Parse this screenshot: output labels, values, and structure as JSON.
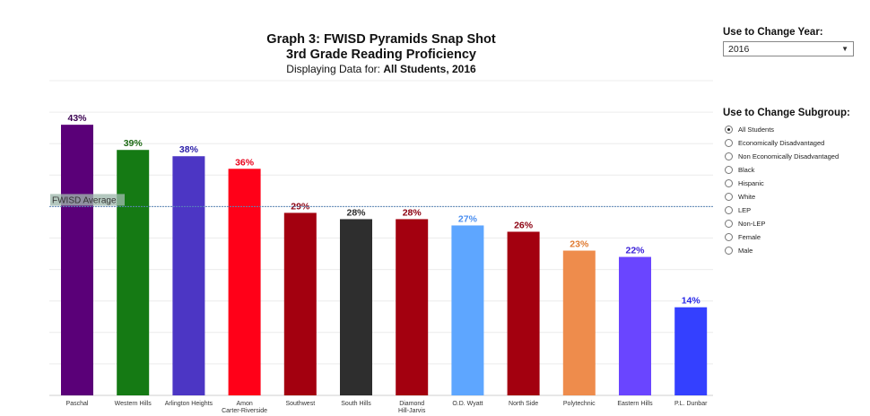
{
  "title": {
    "line1": "Graph 3:  FWISD Pyramids Snap Shot",
    "line2": "3rd Grade Reading Proficiency",
    "line3_prefix": "Displaying Data for: ",
    "line3_value": "All Students, 2016"
  },
  "year_filter": {
    "label": "Use to Change Year:",
    "selected": "2016"
  },
  "subgroup_filter": {
    "label": "Use to Change Subgroup:",
    "selected_index": 0,
    "options": [
      "All Students",
      "Economically Disadvantaged",
      "Non Economically Disadvantaged",
      "Black",
      "Hispanic",
      "White",
      "LEP",
      "Non-LEP",
      "Female",
      "Male"
    ]
  },
  "chart_data": {
    "type": "bar",
    "categories": [
      [
        "Paschal"
      ],
      [
        "Western Hills"
      ],
      [
        "Arlington Heights"
      ],
      [
        "Amon",
        "Carter-Riverside"
      ],
      [
        "Southwest"
      ],
      [
        "South Hills"
      ],
      [
        "Diamond",
        "Hill-Jarvis"
      ],
      [
        "O.D. Wyatt"
      ],
      [
        "North Side"
      ],
      [
        "Polytechnic"
      ],
      [
        "Eastern Hills"
      ],
      [
        "P.L. Dunbar"
      ]
    ],
    "values": [
      43,
      39,
      38,
      36,
      29,
      28,
      28,
      27,
      26,
      23,
      22,
      14
    ],
    "value_labels": [
      "43%",
      "39%",
      "38%",
      "36%",
      "29%",
      "28%",
      "28%",
      "27%",
      "26%",
      "23%",
      "22%",
      "14%"
    ],
    "bar_colors": [
      "#5a0078",
      "#157a14",
      "#4c36c4",
      "#ff0018",
      "#a3000f",
      "#2e2e2e",
      "#a3000f",
      "#5ea6ff",
      "#a3000f",
      "#ee8c4c",
      "#6a45ff",
      "#3440ff"
    ],
    "label_colors": [
      "#3a0050",
      "#1d6a14",
      "#2a1ea8",
      "#e8001a",
      "#8c0010",
      "#2e2e2e",
      "#8c0010",
      "#4a8ef0",
      "#8c0010",
      "#e07a30",
      "#3a20d8",
      "#2a2ae8"
    ],
    "reference_line": {
      "label": "FWISD Average",
      "value": 30
    },
    "ylim": [
      0,
      50
    ],
    "grid": true
  }
}
